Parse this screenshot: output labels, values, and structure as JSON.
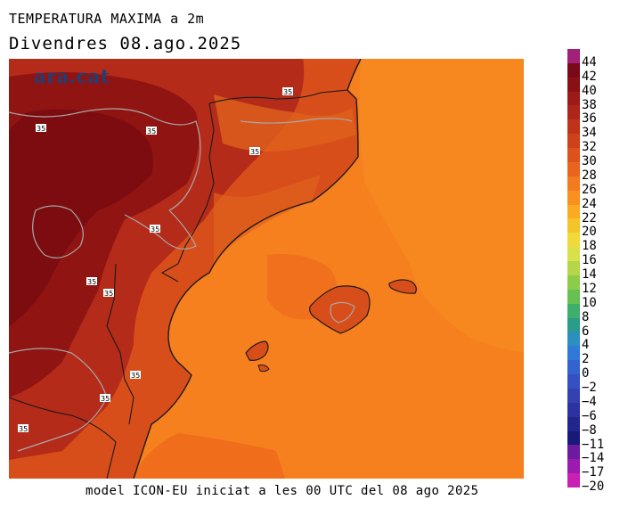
{
  "header": {
    "variable_title": "TEMPERATURA MAXIMA a 2m",
    "date_title": "Divendres  08.ago.2025"
  },
  "logo": {
    "text": "ara.cat",
    "color": "#1f3f78"
  },
  "footer": {
    "text": "model ICON-EU iniciat a les 00 UTC del 08 ago 2025"
  },
  "map": {
    "contour_label": "35",
    "palette": {
      "sea": "#f67f1e",
      "sea_warm": "#ee6a1c",
      "coast": "#d84e1a",
      "inland": "#b42b1a",
      "hot": "#8f1412",
      "hottest": "#7d0c10",
      "contour": "#a8a8a8",
      "border": "#1a1a1a"
    }
  },
  "colorbar": {
    "labels": [
      "44",
      "42",
      "40",
      "38",
      "36",
      "34",
      "32",
      "30",
      "28",
      "26",
      "24",
      "22",
      "20",
      "18",
      "16",
      "14",
      "12",
      "10",
      "8",
      "6",
      "4",
      "2",
      "0",
      "−2",
      "−4",
      "−6",
      "−8",
      "−11",
      "−14",
      "−17",
      "−20"
    ],
    "colors": [
      "#a0207a",
      "#7a0a1a",
      "#8a1016",
      "#9c1a18",
      "#ad2619",
      "#bf3319",
      "#cf411a",
      "#dd521c",
      "#e9651d",
      "#f37a1f",
      "#f9901f",
      "#fbab22",
      "#f5c42a",
      "#f0d93a",
      "#d8e04a",
      "#b5d648",
      "#8ccc48",
      "#66c152",
      "#3eaf6a",
      "#2a9c8a",
      "#2b8fc0",
      "#2f7ad8",
      "#3363cf",
      "#3550c2",
      "#3441b0",
      "#2c329f",
      "#22258c",
      "#18197a",
      "#6c1aa0",
      "#9c1ab0",
      "#c91fb5"
    ]
  }
}
